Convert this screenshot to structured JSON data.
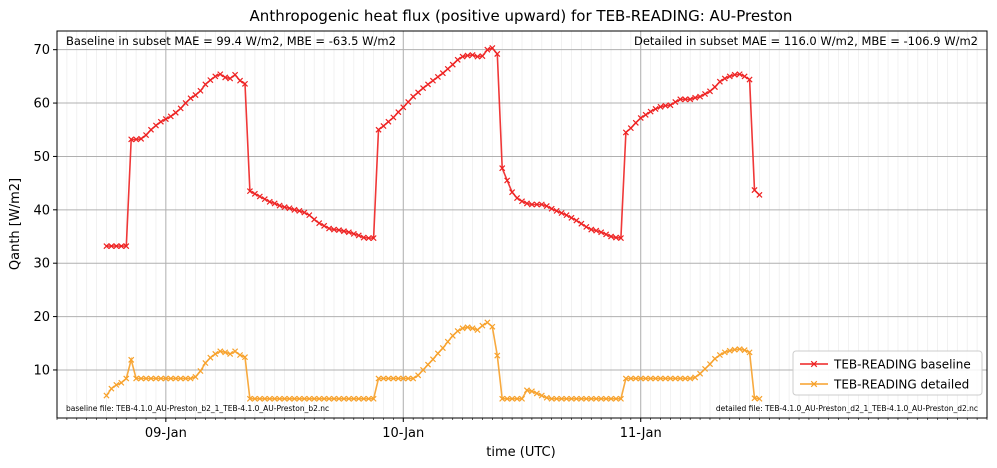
{
  "chart_data": {
    "type": "line",
    "title": "Anthropogenic heat flux (positive upward) for TEB-READING: AU-Preston",
    "xlabel": "time (UTC)",
    "ylabel": "Qanth [W/m2]",
    "ylim": [
      1,
      73.5
    ],
    "xlim": [
      -11,
      83
    ],
    "yticks": [
      10,
      20,
      30,
      40,
      50,
      60,
      70
    ],
    "xticks": [
      {
        "label": "09-Jan",
        "x": 0
      },
      {
        "label": "10-Jan",
        "x": 24
      },
      {
        "label": "11-Jan",
        "x": 48
      }
    ],
    "x_unit": "hours since 09-Jan 00:00 UTC",
    "grid": true,
    "legend_position": "lower-right",
    "annotations": {
      "baseline_stats": "Baseline in subset MAE = 99.4 W/m2, MBE = -63.5 W/m2",
      "detailed_stats": "Detailed in subset MAE = 116.0 W/m2, MBE = -106.9 W/m2",
      "baseline_file": "baseline file: TEB-4.1.0_AU-Preston_b2_1_TEB-4.1.0_AU-Preston_b2.nc",
      "detailed_file": "detailed file: TEB-4.1.0_AU-Preston_d2_1_TEB-4.1.0_AU-Preston_d2.nc"
    },
    "series": [
      {
        "name": "TEB-READING baseline",
        "color": "#ee2222",
        "marker": "x",
        "points": [
          [
            -6,
            33.2
          ],
          [
            -5.5,
            33.2
          ],
          [
            -5,
            33.2
          ],
          [
            -4.5,
            33.2
          ],
          [
            -4,
            33.2
          ],
          [
            -3.5,
            53.2
          ],
          [
            -3,
            53.2
          ],
          [
            -2.5,
            53.3
          ],
          [
            -2,
            54
          ],
          [
            -1.5,
            55
          ],
          [
            -1,
            55.8
          ],
          [
            -0.5,
            56.5
          ],
          [
            0,
            57
          ],
          [
            0.5,
            57.5
          ],
          [
            1,
            58.2
          ],
          [
            1.5,
            59
          ],
          [
            2,
            60
          ],
          [
            2.5,
            60.9
          ],
          [
            3,
            61.5
          ],
          [
            3.5,
            62.3
          ],
          [
            4,
            63.5
          ],
          [
            4.5,
            64.3
          ],
          [
            5,
            65
          ],
          [
            5.5,
            65.4
          ],
          [
            6,
            64.8
          ],
          [
            6.5,
            64.6
          ],
          [
            7,
            65.3
          ],
          [
            7.5,
            64.2
          ],
          [
            8,
            63.6
          ],
          [
            8.5,
            43.5
          ],
          [
            9,
            43
          ],
          [
            9.5,
            42.5
          ],
          [
            10,
            42
          ],
          [
            10.5,
            41.5
          ],
          [
            11,
            41.2
          ],
          [
            11.5,
            40.8
          ],
          [
            12,
            40.5
          ],
          [
            12.5,
            40.3
          ],
          [
            13,
            40
          ],
          [
            13.5,
            39.8
          ],
          [
            14,
            39.5
          ],
          [
            14.5,
            39
          ],
          [
            15,
            38.2
          ],
          [
            15.5,
            37.5
          ],
          [
            16,
            37
          ],
          [
            16.5,
            36.5
          ],
          [
            17,
            36.3
          ],
          [
            17.5,
            36.2
          ],
          [
            18,
            36
          ],
          [
            18.5,
            35.8
          ],
          [
            19,
            35.5
          ],
          [
            19.5,
            35.2
          ],
          [
            20,
            34.8
          ],
          [
            20.5,
            34.7
          ],
          [
            21,
            34.7
          ],
          [
            21.5,
            55
          ],
          [
            22,
            55.7
          ],
          [
            22.5,
            56.5
          ],
          [
            23,
            57.3
          ],
          [
            23.5,
            58.3
          ],
          [
            24,
            59.2
          ],
          [
            24.5,
            60.2
          ],
          [
            25,
            61.2
          ],
          [
            25.5,
            62
          ],
          [
            26,
            62.8
          ],
          [
            26.5,
            63.5
          ],
          [
            27,
            64.2
          ],
          [
            27.5,
            64.9
          ],
          [
            28,
            65.6
          ],
          [
            28.5,
            66.4
          ],
          [
            29,
            67.2
          ],
          [
            29.5,
            68.1
          ],
          [
            30,
            68.7
          ],
          [
            30.5,
            68.9
          ],
          [
            31,
            69
          ],
          [
            31.5,
            68.7
          ],
          [
            32,
            68.8
          ],
          [
            32.5,
            70
          ],
          [
            33,
            70.3
          ],
          [
            33.5,
            69.2
          ],
          [
            34,
            47.8
          ],
          [
            34.5,
            45.5
          ],
          [
            35,
            43.3
          ],
          [
            35.5,
            42.2
          ],
          [
            36,
            41.6
          ],
          [
            36.5,
            41.2
          ],
          [
            37,
            41
          ],
          [
            37.5,
            41
          ],
          [
            38,
            41
          ],
          [
            38.5,
            40.7
          ],
          [
            39,
            40.2
          ],
          [
            39.5,
            39.8
          ],
          [
            40,
            39.4
          ],
          [
            40.5,
            39
          ],
          [
            41,
            38.5
          ],
          [
            41.5,
            38
          ],
          [
            42,
            37.4
          ],
          [
            42.5,
            36.8
          ],
          [
            43,
            36.3
          ],
          [
            43.5,
            36.1
          ],
          [
            44,
            35.8
          ],
          [
            44.5,
            35.4
          ],
          [
            45,
            35
          ],
          [
            45.5,
            34.8
          ],
          [
            46,
            34.7
          ],
          [
            46.5,
            54.5
          ],
          [
            47,
            55.3
          ],
          [
            47.5,
            56.3
          ],
          [
            48,
            57.2
          ],
          [
            48.5,
            57.8
          ],
          [
            49,
            58.4
          ],
          [
            49.5,
            58.9
          ],
          [
            50,
            59.3
          ],
          [
            50.5,
            59.5
          ],
          [
            51,
            59.6
          ],
          [
            51.5,
            60.2
          ],
          [
            52,
            60.7
          ],
          [
            52.5,
            60.7
          ],
          [
            53,
            60.7
          ],
          [
            53.5,
            61
          ],
          [
            54,
            61.2
          ],
          [
            54.5,
            61.7
          ],
          [
            55,
            62.2
          ],
          [
            55.5,
            63
          ],
          [
            56,
            64
          ],
          [
            56.5,
            64.6
          ],
          [
            57,
            65
          ],
          [
            57.5,
            65.3
          ],
          [
            58,
            65.4
          ],
          [
            58.5,
            65
          ],
          [
            59,
            64.4
          ],
          [
            59.5,
            43.7
          ],
          [
            60,
            42.8
          ]
        ]
      },
      {
        "name": "TEB-READING detailed",
        "color": "#f7a12a",
        "marker": "x",
        "points": [
          [
            -6,
            5.2
          ],
          [
            -5.5,
            6.5
          ],
          [
            -5,
            7.2
          ],
          [
            -4.5,
            7.6
          ],
          [
            -4,
            8.4
          ],
          [
            -3.5,
            11.9
          ],
          [
            -3,
            8.4
          ],
          [
            -2.5,
            8.4
          ],
          [
            -2,
            8.4
          ],
          [
            -1.5,
            8.4
          ],
          [
            -1,
            8.4
          ],
          [
            -0.5,
            8.4
          ],
          [
            0,
            8.4
          ],
          [
            0.5,
            8.4
          ],
          [
            1,
            8.4
          ],
          [
            1.5,
            8.4
          ],
          [
            2,
            8.4
          ],
          [
            2.5,
            8.4
          ],
          [
            3,
            8.7
          ],
          [
            3.5,
            9.8
          ],
          [
            4,
            11.3
          ],
          [
            4.5,
            12.3
          ],
          [
            5,
            13
          ],
          [
            5.5,
            13.5
          ],
          [
            6,
            13.3
          ],
          [
            6.5,
            13
          ],
          [
            7,
            13.5
          ],
          [
            7.5,
            12.8
          ],
          [
            8,
            12.4
          ],
          [
            8.5,
            4.6
          ],
          [
            9,
            4.6
          ],
          [
            9.5,
            4.6
          ],
          [
            10,
            4.6
          ],
          [
            10.5,
            4.6
          ],
          [
            11,
            4.6
          ],
          [
            11.5,
            4.6
          ],
          [
            12,
            4.6
          ],
          [
            12.5,
            4.6
          ],
          [
            13,
            4.6
          ],
          [
            13.5,
            4.6
          ],
          [
            14,
            4.6
          ],
          [
            14.5,
            4.6
          ],
          [
            15,
            4.6
          ],
          [
            15.5,
            4.6
          ],
          [
            16,
            4.6
          ],
          [
            16.5,
            4.6
          ],
          [
            17,
            4.6
          ],
          [
            17.5,
            4.6
          ],
          [
            18,
            4.6
          ],
          [
            18.5,
            4.6
          ],
          [
            19,
            4.6
          ],
          [
            19.5,
            4.6
          ],
          [
            20,
            4.6
          ],
          [
            20.5,
            4.6
          ],
          [
            21,
            4.6
          ],
          [
            21.5,
            8.4
          ],
          [
            22,
            8.4
          ],
          [
            22.5,
            8.4
          ],
          [
            23,
            8.4
          ],
          [
            23.5,
            8.4
          ],
          [
            24,
            8.4
          ],
          [
            24.5,
            8.4
          ],
          [
            25,
            8.4
          ],
          [
            25.5,
            9
          ],
          [
            26,
            10
          ],
          [
            26.5,
            11
          ],
          [
            27,
            12
          ],
          [
            27.5,
            13.1
          ],
          [
            28,
            14.1
          ],
          [
            28.5,
            15.3
          ],
          [
            29,
            16.4
          ],
          [
            29.5,
            17.3
          ],
          [
            30,
            17.8
          ],
          [
            30.5,
            18
          ],
          [
            31,
            17.8
          ],
          [
            31.5,
            17.5
          ],
          [
            32,
            18.3
          ],
          [
            32.5,
            18.9
          ],
          [
            33,
            18.1
          ],
          [
            33.5,
            12.7
          ],
          [
            34,
            4.6
          ],
          [
            34.5,
            4.6
          ],
          [
            35,
            4.6
          ],
          [
            35.5,
            4.6
          ],
          [
            36,
            4.6
          ],
          [
            36.5,
            6.2
          ],
          [
            37,
            6
          ],
          [
            37.5,
            5.6
          ],
          [
            38,
            5.2
          ],
          [
            38.5,
            4.8
          ],
          [
            39,
            4.6
          ],
          [
            39.5,
            4.6
          ],
          [
            40,
            4.6
          ],
          [
            40.5,
            4.6
          ],
          [
            41,
            4.6
          ],
          [
            41.5,
            4.6
          ],
          [
            42,
            4.6
          ],
          [
            42.5,
            4.6
          ],
          [
            43,
            4.6
          ],
          [
            43.5,
            4.6
          ],
          [
            44,
            4.6
          ],
          [
            44.5,
            4.6
          ],
          [
            45,
            4.6
          ],
          [
            45.5,
            4.6
          ],
          [
            46,
            4.6
          ],
          [
            46.5,
            8.4
          ],
          [
            47,
            8.4
          ],
          [
            47.5,
            8.4
          ],
          [
            48,
            8.4
          ],
          [
            48.5,
            8.4
          ],
          [
            49,
            8.4
          ],
          [
            49.5,
            8.4
          ],
          [
            50,
            8.4
          ],
          [
            50.5,
            8.4
          ],
          [
            51,
            8.4
          ],
          [
            51.5,
            8.4
          ],
          [
            52,
            8.4
          ],
          [
            52.5,
            8.4
          ],
          [
            53,
            8.4
          ],
          [
            53.5,
            8.6
          ],
          [
            54,
            9.3
          ],
          [
            54.5,
            10.2
          ],
          [
            55,
            11.1
          ],
          [
            55.5,
            12.1
          ],
          [
            56,
            12.8
          ],
          [
            56.5,
            13.3
          ],
          [
            57,
            13.6
          ],
          [
            57.5,
            13.8
          ],
          [
            58,
            13.9
          ],
          [
            58.5,
            13.7
          ],
          [
            59,
            13.3
          ],
          [
            59.5,
            4.7
          ],
          [
            60,
            4.6
          ]
        ]
      }
    ]
  }
}
